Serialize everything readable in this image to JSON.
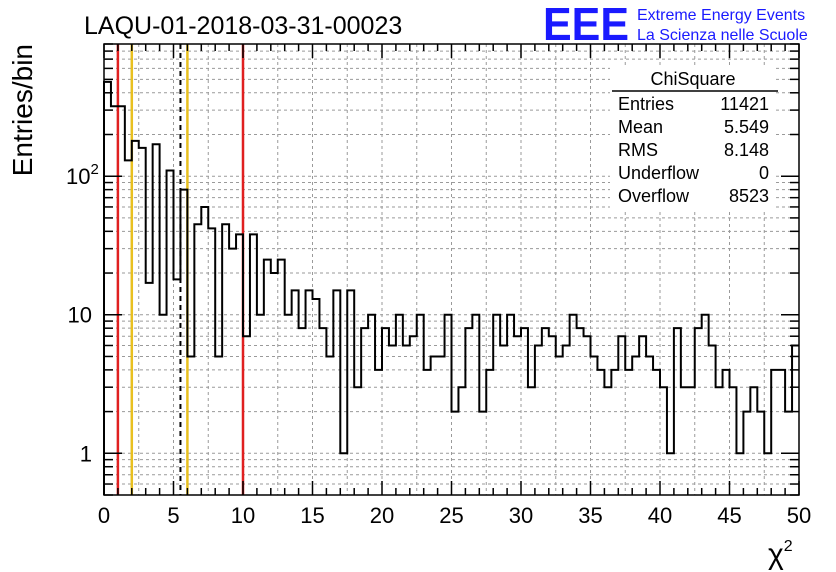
{
  "chart_data": {
    "type": "histogram",
    "title": "LAQU-01-2018-03-31-00023",
    "xlabel": "χ",
    "xlabel_sup": "2",
    "ylabel": "Entries/bin",
    "xlim": [
      0,
      50
    ],
    "ylim": [
      0.5,
      900
    ],
    "yscale": "log",
    "grid": true,
    "bin_width": 0.5,
    "x_ticks": [
      "0",
      "5",
      "10",
      "15",
      "20",
      "25",
      "30",
      "35",
      "40",
      "45",
      "50"
    ],
    "y_ticks": [
      {
        "base": "10",
        "exp": "2",
        "value": 100
      },
      {
        "base": "10",
        "exp": "",
        "value": 10
      },
      {
        "base": "1",
        "exp": "",
        "value": 1
      }
    ],
    "values": [
      480,
      320,
      320,
      130,
      180,
      160,
      17,
      170,
      10,
      110,
      18,
      80,
      5,
      45,
      60,
      42,
      5,
      45,
      30,
      38,
      7,
      38,
      10,
      25,
      20,
      25,
      10,
      15,
      8,
      15,
      13,
      8,
      5,
      15,
      1,
      15,
      3,
      8,
      10,
      4,
      8,
      6,
      10,
      6,
      7,
      10,
      4,
      5,
      5,
      10,
      2,
      3,
      8,
      10,
      2,
      4,
      10,
      6,
      10,
      7,
      8,
      3,
      6,
      8,
      7,
      5,
      6,
      10,
      8,
      7,
      5,
      4,
      3,
      4,
      7,
      4,
      5,
      7,
      5,
      4,
      3,
      1,
      8,
      3,
      3,
      8,
      10,
      6,
      3,
      4,
      3,
      1,
      2,
      3,
      2,
      1,
      4,
      4,
      2,
      6
    ],
    "vlines": [
      {
        "x": 1,
        "color": "#e02020",
        "style": "solid"
      },
      {
        "x": 2,
        "color": "#e8c020",
        "style": "solid"
      },
      {
        "x": 5.5,
        "color": "#000000",
        "style": "dashed"
      },
      {
        "x": 6,
        "color": "#e8c020",
        "style": "solid"
      },
      {
        "x": 10,
        "color": "#e02020",
        "style": "solid"
      }
    ],
    "stats": {
      "name": "ChiSquare",
      "rows": [
        {
          "label": "Entries",
          "value": "11421"
        },
        {
          "label": "Mean",
          "value": "5.549"
        },
        {
          "label": "RMS",
          "value": "8.148"
        },
        {
          "label": "Underflow",
          "value": "0"
        },
        {
          "label": "Overflow",
          "value": "8523"
        }
      ]
    }
  },
  "logo": {
    "text": "EEE",
    "line1": "Extreme Energy Events",
    "line2": "La Scienza nelle Scuole",
    "color": "#1a1aff"
  }
}
